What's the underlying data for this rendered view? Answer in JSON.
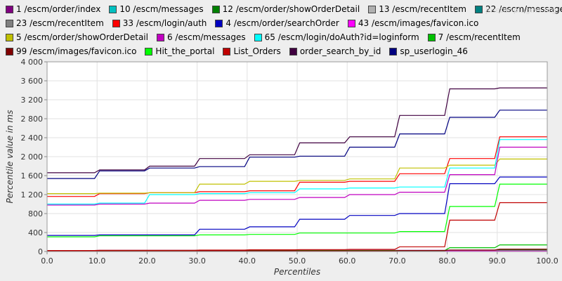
{
  "watermark": "jmeter-plugins.org",
  "chart_data": {
    "type": "line",
    "xlabel": "Percentiles",
    "ylabel": "Percentile value in ms",
    "xlim": [
      0,
      100
    ],
    "ylim": [
      0,
      4000
    ],
    "xticks": [
      "0.0",
      "10.0",
      "20.0",
      "30.0",
      "40.0",
      "50.0",
      "60.0",
      "70.0",
      "80.0",
      "90.0",
      "100.0"
    ],
    "yticks": [
      "0",
      "400",
      "800",
      "1 200",
      "1 600",
      "2 000",
      "2 400",
      "2 800",
      "3 200",
      "3 600",
      "4 000"
    ],
    "grid": true,
    "legend_position": "top",
    "x": [
      0,
      9.5,
      10.5,
      19.5,
      20.5,
      29.5,
      30.5,
      39.5,
      40.5,
      49.5,
      50.5,
      59.5,
      60.5,
      69.5,
      70.5,
      79.5,
      80.5,
      89.5,
      90.5,
      100
    ],
    "series": [
      {
        "name": "1 /escm/order/index",
        "color": "#800080",
        "values": [
          20,
          20,
          25,
          25,
          25,
          25,
          25,
          25,
          25,
          25,
          25,
          25,
          25,
          25,
          25,
          25,
          30,
          30,
          30,
          30
        ]
      },
      {
        "name": "10 /escm/messages",
        "color": "#00c0c0",
        "values": [
          5,
          5,
          5,
          5,
          5,
          5,
          5,
          5,
          5,
          5,
          5,
          5,
          5,
          5,
          5,
          5,
          10,
          10,
          10,
          10
        ]
      },
      {
        "name": "12 /escm/order/showOrderDetail",
        "color": "#008000",
        "values": [
          5,
          5,
          5,
          5,
          5,
          5,
          5,
          5,
          5,
          5,
          5,
          5,
          5,
          5,
          5,
          5,
          20,
          20,
          30,
          30
        ]
      },
      {
        "name": "13 /escm/recentItem",
        "color": "#b0b0b0",
        "values": [
          10,
          10,
          10,
          10,
          10,
          10,
          10,
          10,
          10,
          10,
          10,
          10,
          10,
          10,
          10,
          10,
          15,
          15,
          15,
          15
        ]
      },
      {
        "name": "22 /escm/messages",
        "color": "#008080",
        "values": [
          5,
          5,
          5,
          5,
          5,
          5,
          5,
          5,
          5,
          5,
          5,
          5,
          5,
          5,
          5,
          5,
          10,
          10,
          10,
          10
        ]
      },
      {
        "name": "23 /escm/recentItem",
        "color": "#808080",
        "values": [
          10,
          10,
          10,
          10,
          10,
          10,
          10,
          10,
          10,
          10,
          10,
          10,
          10,
          10,
          10,
          10,
          15,
          15,
          15,
          15
        ]
      },
      {
        "name": "33 /escm/login/auth",
        "color": "#ff0000",
        "values": [
          1160,
          1160,
          1220,
          1220,
          1240,
          1240,
          1260,
          1260,
          1280,
          1280,
          1460,
          1460,
          1480,
          1480,
          1640,
          1640,
          1960,
          1960,
          2420,
          2420
        ]
      },
      {
        "name": "4 /escm/order/searchOrder",
        "color": "#0000c0",
        "values": [
          340,
          340,
          350,
          350,
          350,
          350,
          470,
          470,
          520,
          520,
          680,
          680,
          760,
          760,
          800,
          800,
          1430,
          1430,
          1570,
          1570
        ]
      },
      {
        "name": "43 /escm/images/favicon.ico",
        "color": "#ff00ff",
        "values": [
          5,
          5,
          5,
          5,
          5,
          5,
          5,
          5,
          5,
          5,
          5,
          5,
          5,
          5,
          5,
          5,
          10,
          10,
          10,
          10
        ]
      },
      {
        "name": "5 /escm/order/showOrderDetail",
        "color": "#c0c000",
        "values": [
          1220,
          1220,
          1230,
          1230,
          1240,
          1240,
          1420,
          1420,
          1480,
          1480,
          1500,
          1500,
          1530,
          1530,
          1760,
          1760,
          1820,
          1820,
          1950,
          1950
        ]
      },
      {
        "name": "6 /escm/messages",
        "color": "#c000c0",
        "values": [
          980,
          980,
          1000,
          1000,
          1020,
          1020,
          1080,
          1080,
          1100,
          1100,
          1140,
          1140,
          1200,
          1200,
          1250,
          1250,
          1620,
          1620,
          2200,
          2200
        ]
      },
      {
        "name": "65 /escm/login/doAuth?id=loginform",
        "color": "#00ffff",
        "values": [
          1000,
          1000,
          1020,
          1020,
          1200,
          1200,
          1220,
          1220,
          1240,
          1240,
          1320,
          1320,
          1340,
          1340,
          1360,
          1360,
          1760,
          1760,
          2360,
          2360
        ]
      },
      {
        "name": "7 /escm/recentItem",
        "color": "#00c000",
        "values": [
          15,
          15,
          20,
          20,
          20,
          20,
          20,
          20,
          20,
          20,
          20,
          20,
          20,
          20,
          20,
          20,
          80,
          80,
          140,
          140
        ]
      },
      {
        "name": "99 /escm/images/favicon.ico",
        "color": "#800000",
        "values": [
          10,
          10,
          10,
          10,
          10,
          10,
          15,
          15,
          15,
          15,
          15,
          15,
          15,
          15,
          20,
          20,
          30,
          30,
          50,
          50
        ]
      },
      {
        "name": "Hit_the_portal",
        "color": "#00ff00",
        "values": [
          310,
          310,
          330,
          330,
          330,
          330,
          350,
          350,
          360,
          360,
          390,
          390,
          390,
          390,
          420,
          420,
          950,
          950,
          1420,
          1420
        ]
      },
      {
        "name": "List_Orders",
        "color": "#c00000",
        "values": [
          20,
          20,
          25,
          25,
          25,
          25,
          30,
          30,
          35,
          35,
          40,
          40,
          45,
          45,
          100,
          100,
          660,
          660,
          1030,
          1030
        ]
      },
      {
        "name": "order_search_by_id",
        "color": "#400040",
        "values": [
          1660,
          1660,
          1720,
          1720,
          1800,
          1800,
          1960,
          1960,
          2040,
          2040,
          2290,
          2290,
          2420,
          2420,
          2870,
          2870,
          3430,
          3430,
          3450,
          3450
        ]
      },
      {
        "name": "sp_userlogin_46",
        "color": "#000080",
        "values": [
          1540,
          1540,
          1700,
          1700,
          1760,
          1760,
          1790,
          1790,
          1990,
          1990,
          2010,
          2010,
          2200,
          2200,
          2480,
          2480,
          2830,
          2830,
          2980,
          2980
        ]
      }
    ]
  }
}
